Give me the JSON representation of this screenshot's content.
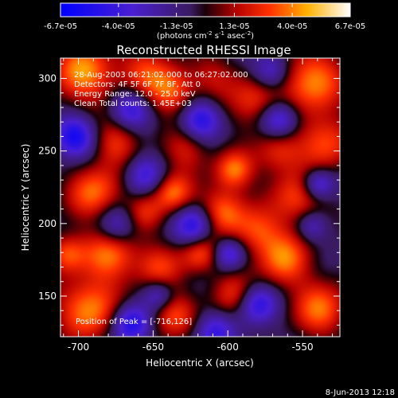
{
  "chart_data": {
    "type": "heatmap",
    "title": "Reconstructed RHESSI Image",
    "xlabel": "Heliocentric X (arcsec)",
    "ylabel": "Heliocentric Y (arcsec)",
    "xlim": [
      -712,
      -525
    ],
    "ylim": [
      122,
      314
    ],
    "x_ticks": [
      -700,
      -650,
      -600,
      -550
    ],
    "y_ticks": [
      150,
      200,
      250,
      300
    ],
    "colorbar": {
      "ticks": [
        "-6.7e-05",
        "-4.0e-05",
        "-1.3e-05",
        "1.3e-05",
        "4.0e-05",
        "6.7e-05"
      ],
      "range": [
        -6.7e-05,
        6.7e-05
      ],
      "units_main": "(photons cm",
      "units_exp1": "-2",
      "units_mid": " s",
      "units_exp2": "-1",
      "units_end": " asec",
      "units_exp3": "-2",
      "units_close": ")"
    },
    "info": {
      "line1": "28-Aug-2003 06:21:02.000 to 06:27:02.000",
      "line2": "Detectors: 4F 5F 6F 7F 8F, Att 0",
      "line3": "Energy Range: 12.0 - 25.0 keV",
      "line4": "Clean    Total counts: 1.45E+03"
    },
    "peak_label": "Position of Peak = [-716,126]",
    "peak_position": [
      -716,
      126
    ],
    "colormap": "rhessi-blue-purple-red-yellow-white"
  },
  "footer": {
    "date": "8-Jun-2013 12:18"
  }
}
